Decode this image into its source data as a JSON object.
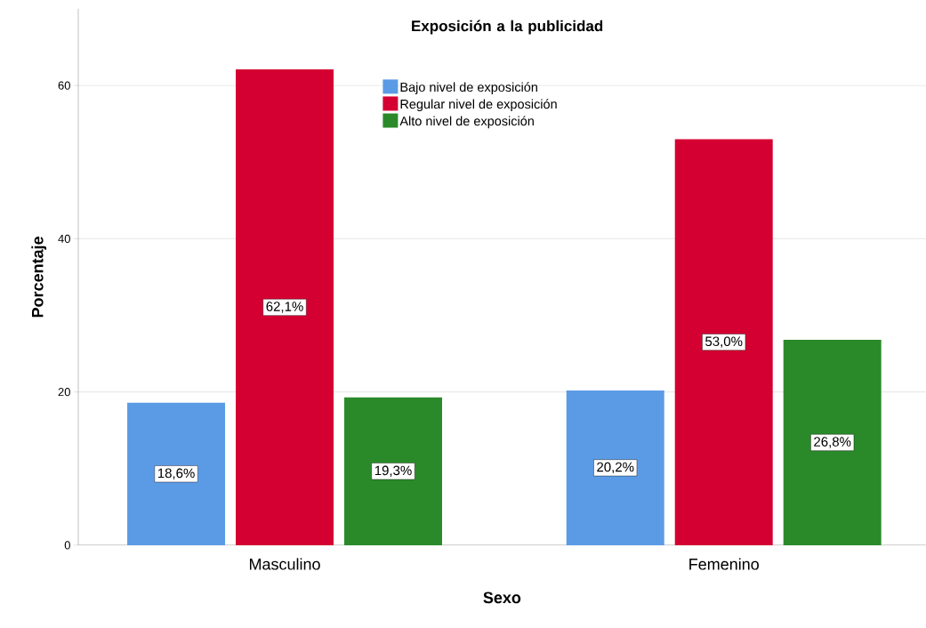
{
  "chart_data": {
    "type": "bar",
    "categories": [
      "Masculino",
      "Femenino"
    ],
    "xlabel": "Sexo",
    "ylabel": "Porcentaje",
    "legend_title": "Exposición a la publicidad",
    "series": [
      {
        "name": "Bajo nivel de exposición",
        "color": "#5b9be6",
        "values": [
          18.6,
          20.2
        ],
        "value_labels": [
          "18,6%",
          "20,2%"
        ]
      },
      {
        "name": "Regular nivel de exposición",
        "color": "#d50032",
        "values": [
          62.1,
          53.0
        ],
        "value_labels": [
          "62,1%",
          "53,0%"
        ]
      },
      {
        "name": "Alto nivel de exposición",
        "color": "#2a8a2a",
        "values": [
          19.3,
          26.8
        ],
        "value_labels": [
          "19,3%",
          "26,8%"
        ]
      }
    ],
    "ylim": [
      0,
      70
    ],
    "yticks": [
      0,
      20,
      40,
      60
    ],
    "grid": "y",
    "legend": "top"
  }
}
